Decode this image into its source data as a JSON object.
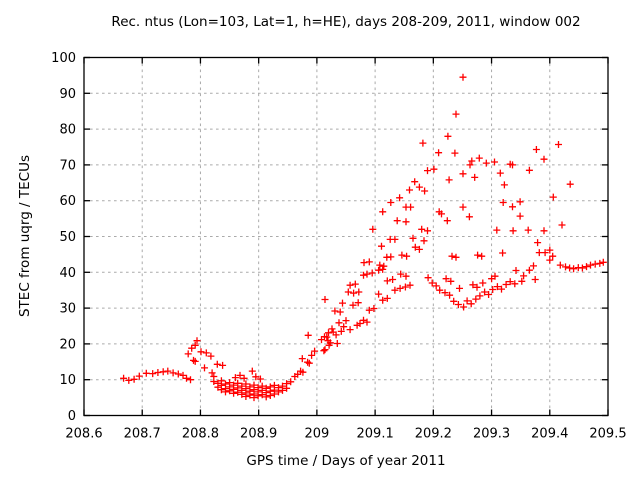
{
  "chart_data": {
    "type": "scatter",
    "title": "Rec. ntus (Lon=103, Lat=1, h=HE), days 208-209, 2011, window 002",
    "xlabel": "GPS time / Days of year 2011",
    "ylabel": "STEC from uqrg / TECUs",
    "xlim": [
      208.6,
      209.5
    ],
    "ylim": [
      0,
      100
    ],
    "xtick_labels": [
      "208.6",
      "208.7",
      "208.8",
      "208.9",
      "209",
      "209.1",
      "209.2",
      "209.3",
      "209.4",
      "209.5"
    ],
    "ytick_labels": [
      "0",
      "10",
      "20",
      "30",
      "40",
      "50",
      "60",
      "70",
      "80",
      "90",
      "100"
    ],
    "grid": true,
    "legend_position": "none",
    "marker": {
      "shape": "plus",
      "color": "#ff0000",
      "size": 7
    },
    "colors": {
      "background": "#ffffff",
      "grid": "#aaaaaa",
      "axis": "#000000",
      "text": "#000000",
      "points": "#ff0000"
    },
    "points": [
      [
        208.668,
        10.4
      ],
      [
        208.677,
        9.8
      ],
      [
        208.686,
        10.1
      ],
      [
        208.695,
        11.0
      ],
      [
        208.707,
        11.8
      ],
      [
        208.718,
        11.7
      ],
      [
        208.727,
        12.0
      ],
      [
        208.736,
        12.2
      ],
      [
        208.744,
        12.4
      ],
      [
        208.753,
        11.9
      ],
      [
        208.762,
        11.6
      ],
      [
        208.77,
        11.2
      ],
      [
        208.776,
        10.4
      ],
      [
        208.783,
        10.0
      ],
      [
        208.779,
        17.2
      ],
      [
        208.785,
        18.8
      ],
      [
        208.788,
        15.4
      ],
      [
        208.791,
        19.6
      ],
      [
        208.791,
        15.1
      ],
      [
        208.794,
        20.9
      ],
      [
        208.801,
        17.8
      ],
      [
        208.807,
        13.3
      ],
      [
        208.81,
        17.5
      ],
      [
        208.818,
        16.6
      ],
      [
        208.82,
        11.9
      ],
      [
        208.823,
        10.9
      ],
      [
        208.823,
        9.5
      ],
      [
        208.829,
        14.3
      ],
      [
        208.83,
        9.0
      ],
      [
        208.83,
        7.9
      ],
      [
        208.836,
        9.7
      ],
      [
        208.836,
        8.4
      ],
      [
        208.836,
        7.2
      ],
      [
        208.838,
        14.0
      ],
      [
        208.843,
        8.8
      ],
      [
        208.843,
        7.5
      ],
      [
        208.843,
        6.6
      ],
      [
        208.85,
        9.2
      ],
      [
        208.85,
        8.0
      ],
      [
        208.85,
        6.9
      ],
      [
        208.857,
        8.5
      ],
      [
        208.857,
        7.3
      ],
      [
        208.857,
        6.2
      ],
      [
        208.86,
        10.6
      ],
      [
        208.864,
        9.0
      ],
      [
        208.864,
        7.7
      ],
      [
        208.864,
        6.5
      ],
      [
        208.868,
        11.2
      ],
      [
        208.871,
        8.2
      ],
      [
        208.871,
        7.0
      ],
      [
        208.871,
        5.9
      ],
      [
        208.875,
        10.4
      ],
      [
        208.878,
        8.8
      ],
      [
        208.878,
        7.5
      ],
      [
        208.878,
        6.3
      ],
      [
        208.878,
        5.3
      ],
      [
        208.885,
        8.0
      ],
      [
        208.885,
        6.8
      ],
      [
        208.885,
        5.7
      ],
      [
        208.889,
        12.4
      ],
      [
        208.892,
        8.5
      ],
      [
        208.892,
        7.2
      ],
      [
        208.892,
        6.0
      ],
      [
        208.892,
        5.0
      ],
      [
        208.895,
        10.8
      ],
      [
        208.899,
        7.8
      ],
      [
        208.899,
        6.6
      ],
      [
        208.899,
        5.5
      ],
      [
        208.903,
        10.2
      ],
      [
        208.906,
        8.2
      ],
      [
        208.906,
        7.0
      ],
      [
        208.906,
        5.8
      ],
      [
        208.913,
        7.6
      ],
      [
        208.913,
        6.4
      ],
      [
        208.913,
        5.2
      ],
      [
        208.92,
        8.0
      ],
      [
        208.92,
        6.8
      ],
      [
        208.92,
        5.6
      ],
      [
        208.927,
        8.4
      ],
      [
        208.927,
        7.1
      ],
      [
        208.927,
        6.0
      ],
      [
        208.934,
        7.8
      ],
      [
        208.934,
        6.6
      ],
      [
        208.941,
        8.2
      ],
      [
        208.941,
        7.0
      ],
      [
        208.948,
        8.9
      ],
      [
        208.948,
        7.6
      ],
      [
        208.955,
        9.4
      ],
      [
        208.962,
        10.9
      ],
      [
        208.967,
        11.5
      ],
      [
        208.972,
        12.4
      ],
      [
        208.975,
        15.9
      ],
      [
        208.976,
        12.1
      ],
      [
        208.984,
        14.9
      ],
      [
        208.985,
        22.4
      ],
      [
        208.987,
        14.6
      ],
      [
        208.991,
        16.8
      ],
      [
        208.996,
        18.0
      ],
      [
        209.008,
        21.2
      ],
      [
        209.012,
        18.1
      ],
      [
        209.013,
        22.0
      ],
      [
        209.014,
        18.4
      ],
      [
        209.014,
        32.4
      ],
      [
        209.017,
        21.9
      ],
      [
        209.019,
        20.9
      ],
      [
        209.02,
        23.1
      ],
      [
        209.021,
        19.6
      ],
      [
        209.023,
        20.3
      ],
      [
        209.026,
        24.2
      ],
      [
        209.028,
        23.3
      ],
      [
        209.031,
        29.2
      ],
      [
        209.033,
        22.5
      ],
      [
        209.035,
        20.1
      ],
      [
        209.038,
        25.9
      ],
      [
        209.04,
        28.9
      ],
      [
        209.042,
        23.5
      ],
      [
        209.044,
        31.4
      ],
      [
        209.046,
        24.8
      ],
      [
        209.05,
        26.5
      ],
      [
        209.054,
        34.5
      ],
      [
        209.057,
        36.4
      ],
      [
        209.057,
        24.0
      ],
      [
        209.062,
        30.8
      ],
      [
        209.063,
        34.2
      ],
      [
        209.066,
        36.7
      ],
      [
        209.069,
        25.2
      ],
      [
        209.071,
        31.5
      ],
      [
        209.072,
        34.5
      ],
      [
        209.074,
        25.7
      ],
      [
        209.08,
        39.2
      ],
      [
        209.08,
        26.6
      ],
      [
        209.081,
        42.7
      ],
      [
        209.086,
        39.5
      ],
      [
        209.086,
        26.1
      ],
      [
        209.09,
        42.9
      ],
      [
        209.09,
        29.4
      ],
      [
        209.095,
        39.8
      ],
      [
        209.096,
        52.0
      ],
      [
        209.098,
        29.9
      ],
      [
        209.106,
        40.6
      ],
      [
        209.106,
        33.9
      ],
      [
        209.108,
        42.0
      ],
      [
        209.111,
        47.3
      ],
      [
        209.113,
        56.9
      ],
      [
        209.113,
        40.8
      ],
      [
        209.113,
        32.2
      ],
      [
        209.115,
        41.7
      ],
      [
        209.12,
        44.2
      ],
      [
        209.121,
        37.6
      ],
      [
        209.121,
        32.7
      ],
      [
        209.126,
        49.2
      ],
      [
        209.127,
        59.5
      ],
      [
        209.127,
        44.3
      ],
      [
        209.13,
        38.0
      ],
      [
        209.134,
        49.2
      ],
      [
        209.134,
        35.0
      ],
      [
        209.138,
        54.4
      ],
      [
        209.142,
        60.8
      ],
      [
        209.143,
        35.5
      ],
      [
        209.144,
        39.5
      ],
      [
        209.146,
        44.8
      ],
      [
        209.152,
        35.9
      ],
      [
        209.153,
        58.2
      ],
      [
        209.153,
        54.1
      ],
      [
        209.153,
        38.9
      ],
      [
        209.154,
        44.5
      ],
      [
        209.159,
        63.0
      ],
      [
        209.16,
        36.4
      ],
      [
        209.161,
        58.2
      ],
      [
        209.165,
        49.5
      ],
      [
        209.168,
        65.3
      ],
      [
        209.169,
        47.0
      ],
      [
        209.176,
        63.8
      ],
      [
        209.176,
        46.4
      ],
      [
        209.18,
        52.0
      ],
      [
        209.182,
        76.1
      ],
      [
        209.184,
        48.8
      ],
      [
        209.185,
        62.7
      ],
      [
        209.19,
        68.4
      ],
      [
        209.19,
        51.6
      ],
      [
        209.191,
        38.5
      ],
      [
        209.198,
        37.0
      ],
      [
        209.201,
        68.8
      ],
      [
        209.205,
        36.2
      ],
      [
        209.209,
        73.4
      ],
      [
        209.21,
        56.9
      ],
      [
        209.211,
        35.0
      ],
      [
        209.214,
        56.3
      ],
      [
        209.22,
        34.3
      ],
      [
        209.222,
        38.2
      ],
      [
        209.224,
        54.4
      ],
      [
        209.225,
        78.0
      ],
      [
        209.227,
        65.8
      ],
      [
        209.228,
        33.6
      ],
      [
        209.23,
        37.5
      ],
      [
        209.232,
        44.5
      ],
      [
        209.235,
        31.9
      ],
      [
        209.237,
        73.3
      ],
      [
        209.239,
        84.2
      ],
      [
        209.239,
        44.2
      ],
      [
        209.243,
        31.0
      ],
      [
        209.245,
        35.5
      ],
      [
        209.251,
        94.5
      ],
      [
        209.252,
        30.3
      ],
      [
        209.251,
        67.5
      ],
      [
        209.251,
        58.2
      ],
      [
        209.258,
        32.0
      ],
      [
        209.262,
        55.5
      ],
      [
        209.263,
        70.0
      ],
      [
        209.265,
        31.2
      ],
      [
        209.266,
        71.1
      ],
      [
        209.268,
        36.5
      ],
      [
        209.271,
        66.5
      ],
      [
        209.273,
        32.5
      ],
      [
        209.275,
        35.8
      ],
      [
        209.276,
        44.8
      ],
      [
        209.279,
        71.9
      ],
      [
        209.28,
        33.4
      ],
      [
        209.283,
        44.5
      ],
      [
        209.285,
        37.0
      ],
      [
        209.288,
        34.5
      ],
      [
        209.291,
        70.5
      ],
      [
        209.295,
        33.8
      ],
      [
        209.3,
        38.2
      ],
      [
        209.302,
        35.2
      ],
      [
        209.305,
        70.8
      ],
      [
        209.306,
        38.9
      ],
      [
        209.309,
        51.8
      ],
      [
        209.31,
        36.0
      ],
      [
        209.315,
        67.7
      ],
      [
        209.317,
        35.3
      ],
      [
        209.319,
        45.4
      ],
      [
        209.32,
        59.5
      ],
      [
        209.322,
        64.4
      ],
      [
        209.325,
        36.6
      ],
      [
        209.332,
        37.4
      ],
      [
        209.332,
        70.2
      ],
      [
        209.336,
        58.3
      ],
      [
        209.336,
        70.0
      ],
      [
        209.337,
        51.6
      ],
      [
        209.34,
        36.8
      ],
      [
        209.342,
        40.5
      ],
      [
        209.349,
        59.7
      ],
      [
        209.349,
        55.7
      ],
      [
        209.352,
        37.5
      ],
      [
        209.355,
        39.0
      ],
      [
        209.363,
        51.8
      ],
      [
        209.365,
        68.5
      ],
      [
        209.365,
        40.6
      ],
      [
        209.372,
        41.8
      ],
      [
        209.375,
        38.0
      ],
      [
        209.377,
        74.3
      ],
      [
        209.379,
        48.3
      ],
      [
        209.382,
        45.5
      ],
      [
        209.39,
        71.6
      ],
      [
        209.39,
        51.6
      ],
      [
        209.392,
        45.5
      ],
      [
        209.4,
        46.2
      ],
      [
        209.4,
        43.4
      ],
      [
        209.405,
        44.5
      ],
      [
        209.406,
        61.0
      ],
      [
        209.415,
        75.7
      ],
      [
        209.418,
        42.0
      ],
      [
        209.421,
        53.2
      ],
      [
        209.427,
        41.5
      ],
      [
        209.435,
        64.6
      ],
      [
        209.434,
        41.2
      ],
      [
        209.441,
        41.0
      ],
      [
        209.449,
        41.3
      ],
      [
        209.456,
        41.2
      ],
      [
        209.463,
        41.6
      ],
      [
        209.47,
        42.0
      ],
      [
        209.478,
        42.3
      ],
      [
        209.486,
        42.5
      ],
      [
        209.492,
        42.8
      ]
    ]
  }
}
